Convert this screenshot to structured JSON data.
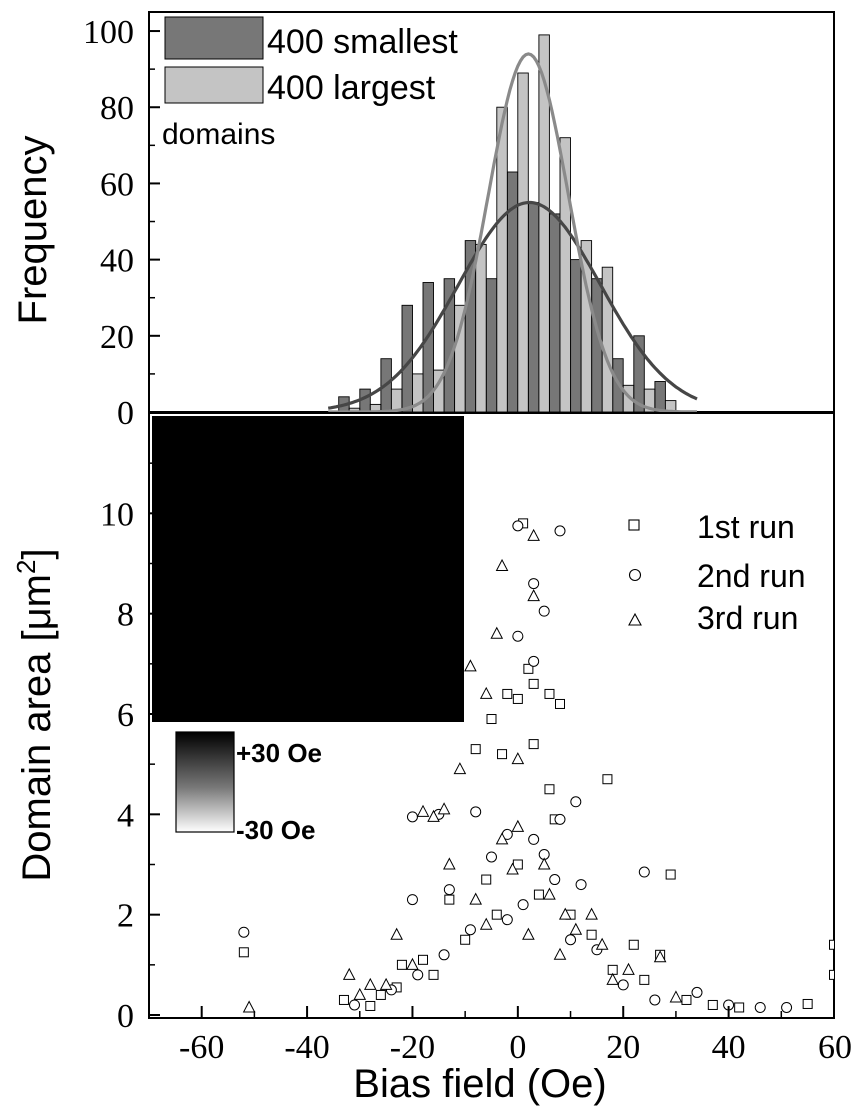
{
  "chart_data": [
    {
      "type": "bar",
      "panel": "top",
      "ylabel": "Frequency",
      "ylim": [
        0,
        105
      ],
      "yticks": [
        "0",
        "20",
        "40",
        "60",
        "80",
        "100"
      ],
      "legend_placement": "top-left",
      "legend_note": "domains",
      "series": [
        {
          "name": "400 smallest",
          "color": "#777777",
          "x": [
            -32,
            -28,
            -24,
            -20,
            -16,
            -12,
            -8,
            -4,
            0,
            4,
            8,
            12,
            16,
            20,
            24,
            28
          ],
          "values": [
            4,
            6,
            14,
            28,
            34,
            35,
            45,
            35,
            63,
            55,
            52,
            40,
            35,
            14,
            20,
            8
          ],
          "fit_center": 2.2,
          "fit_peak": 55,
          "fit_sigma": 13.5
        },
        {
          "name": "400 largest",
          "color": "#c4c4c4",
          "x": [
            -32,
            -28,
            -24,
            -20,
            -16,
            -12,
            -8,
            -4,
            0,
            4,
            8,
            12,
            16,
            20,
            24,
            28
          ],
          "values": [
            1,
            2,
            6,
            10,
            11,
            28,
            44,
            80,
            89,
            99,
            72,
            45,
            38,
            7,
            6,
            3
          ],
          "fit_center": 2.0,
          "fit_peak": 94,
          "fit_sigma": 7.6
        }
      ],
      "fit_line_colors": [
        "#464646",
        "#8a8a8a"
      ]
    },
    {
      "type": "scatter",
      "panel": "bottom",
      "xlabel": "Bias field (Oe)",
      "ylabel_main": "Domain area [",
      "ylabel_unit": "μm",
      "ylabel_sup": "2",
      "ylabel_close": "]",
      "xlim": [
        -70,
        60
      ],
      "ylim": [
        0,
        12
      ],
      "xticks": [
        "-60",
        "-40",
        "-20",
        "0",
        "20",
        "40",
        "60"
      ],
      "yticks": [
        "0",
        "2",
        "4",
        "6",
        "8",
        "10"
      ],
      "legend_placement": "top-right",
      "series": [
        {
          "name": "1st run",
          "marker": "square",
          "points": [
            [
              -52,
              1.25
            ],
            [
              -33,
              0.3
            ],
            [
              -28,
              0.18
            ],
            [
              -23,
              0.55
            ],
            [
              -16,
              0.8
            ],
            [
              -13,
              2.3
            ],
            [
              -8,
              5.3
            ],
            [
              -5,
              5.9
            ],
            [
              -3,
              5.2
            ],
            [
              -2,
              6.4
            ],
            [
              0,
              6.3
            ],
            [
              1,
              9.8
            ],
            [
              2,
              6.9
            ],
            [
              3,
              6.6
            ],
            [
              3,
              5.4
            ],
            [
              6,
              6.4
            ],
            [
              8,
              6.2
            ],
            [
              7,
              3.9
            ],
            [
              6,
              4.5
            ],
            [
              17,
              4.7
            ],
            [
              29,
              2.8
            ],
            [
              22,
              1.4
            ],
            [
              27,
              1.2
            ],
            [
              37,
              0.2
            ],
            [
              55,
              0.22
            ],
            [
              60,
              1.4
            ],
            [
              60,
              0.8
            ],
            [
              -10,
              1.5
            ],
            [
              -6,
              2.7
            ],
            [
              -4,
              2.0
            ],
            [
              0,
              3.0
            ],
            [
              4,
              2.4
            ],
            [
              10,
              2.0
            ],
            [
              14,
              1.6
            ],
            [
              -18,
              1.1
            ],
            [
              -22,
              1.0
            ],
            [
              18,
              0.9
            ],
            [
              24,
              0.7
            ],
            [
              32,
              0.3
            ],
            [
              42,
              0.15
            ],
            [
              -26,
              0.4
            ]
          ]
        },
        {
          "name": "2nd run",
          "marker": "circle",
          "points": [
            [
              -52,
              1.65
            ],
            [
              -20,
              3.95
            ],
            [
              -15,
              4.0
            ],
            [
              -8,
              4.05
            ],
            [
              0,
              9.75
            ],
            [
              0,
              7.55
            ],
            [
              3,
              8.6
            ],
            [
              3,
              7.05
            ],
            [
              5,
              8.05
            ],
            [
              8,
              9.65
            ],
            [
              11,
              4.25
            ],
            [
              8,
              3.9
            ],
            [
              24,
              2.85
            ],
            [
              -13,
              2.5
            ],
            [
              -20,
              2.3
            ],
            [
              -2,
              3.6
            ],
            [
              3,
              3.5
            ],
            [
              12,
              2.6
            ],
            [
              34,
              0.45
            ],
            [
              40,
              0.2
            ],
            [
              46,
              0.15
            ],
            [
              51,
              0.15
            ],
            [
              -31,
              0.2
            ],
            [
              -19,
              0.8
            ],
            [
              -9,
              1.7
            ],
            [
              -5,
              3.15
            ],
            [
              5,
              3.2
            ],
            [
              7,
              2.7
            ],
            [
              15,
              1.3
            ],
            [
              20,
              0.6
            ],
            [
              26,
              0.3
            ],
            [
              -14,
              1.2
            ],
            [
              -2,
              1.9
            ],
            [
              1,
              2.2
            ],
            [
              10,
              1.5
            ],
            [
              -24,
              0.5
            ]
          ]
        },
        {
          "name": "3rd run",
          "marker": "triangle",
          "points": [
            [
              -51,
              0.15
            ],
            [
              -32,
              0.8
            ],
            [
              -25,
              0.6
            ],
            [
              -11,
              4.9
            ],
            [
              -9,
              6.95
            ],
            [
              -3,
              8.95
            ],
            [
              -4,
              7.6
            ],
            [
              -6,
              6.4
            ],
            [
              0,
              5.1
            ],
            [
              3,
              9.55
            ],
            [
              3,
              8.35
            ],
            [
              -16,
              3.95
            ],
            [
              -18,
              4.05
            ],
            [
              -14,
              4.1
            ],
            [
              -13,
              3.0
            ],
            [
              -3,
              3.5
            ],
            [
              0,
              3.75
            ],
            [
              5,
              3.0
            ],
            [
              9,
              2.0
            ],
            [
              14,
              2.0
            ],
            [
              27,
              1.15
            ],
            [
              -23,
              1.6
            ],
            [
              -28,
              0.6
            ],
            [
              -8,
              2.3
            ],
            [
              -1,
              2.9
            ],
            [
              6,
              2.4
            ],
            [
              11,
              1.7
            ],
            [
              16,
              1.4
            ],
            [
              21,
              0.9
            ],
            [
              -20,
              1.0
            ],
            [
              -6,
              1.8
            ],
            [
              2,
              1.6
            ],
            [
              8,
              1.2
            ],
            [
              18,
              0.7
            ],
            [
              30,
              0.35
            ],
            [
              -30,
              0.4
            ]
          ]
        }
      ]
    }
  ],
  "inset": {
    "colorbar_max_label": "+30 Oe",
    "colorbar_min_label": "-30 Oe"
  }
}
